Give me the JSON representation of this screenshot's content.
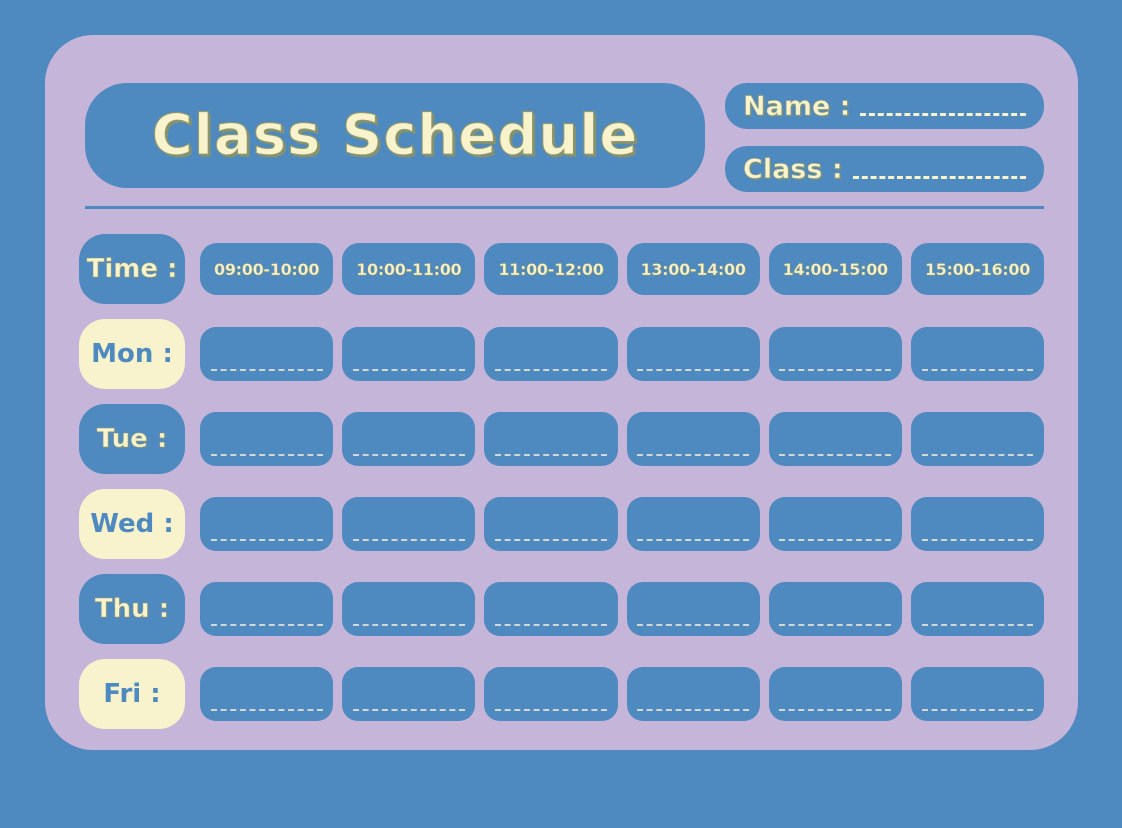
{
  "title": "Class Schedule",
  "fields": {
    "name_label": "Name :",
    "class_label": "Class :"
  },
  "schedule": {
    "time_label": "Time :",
    "time_slots": [
      "09:00-10:00",
      "10:00-11:00",
      "11:00-12:00",
      "13:00-14:00",
      "14:00-15:00",
      "15:00-16:00"
    ],
    "days": [
      {
        "label": "Mon :",
        "style": "cream"
      },
      {
        "label": "Tue :",
        "style": "blue"
      },
      {
        "label": "Wed :",
        "style": "cream"
      },
      {
        "label": "Thu :",
        "style": "blue"
      },
      {
        "label": "Fri :",
        "style": "cream"
      }
    ]
  },
  "colors": {
    "background_blue": "#4e89c0",
    "card_lavender": "#c5b5d9",
    "cream": "#f8f3cd",
    "text_outline_olive": "#8d9465"
  }
}
